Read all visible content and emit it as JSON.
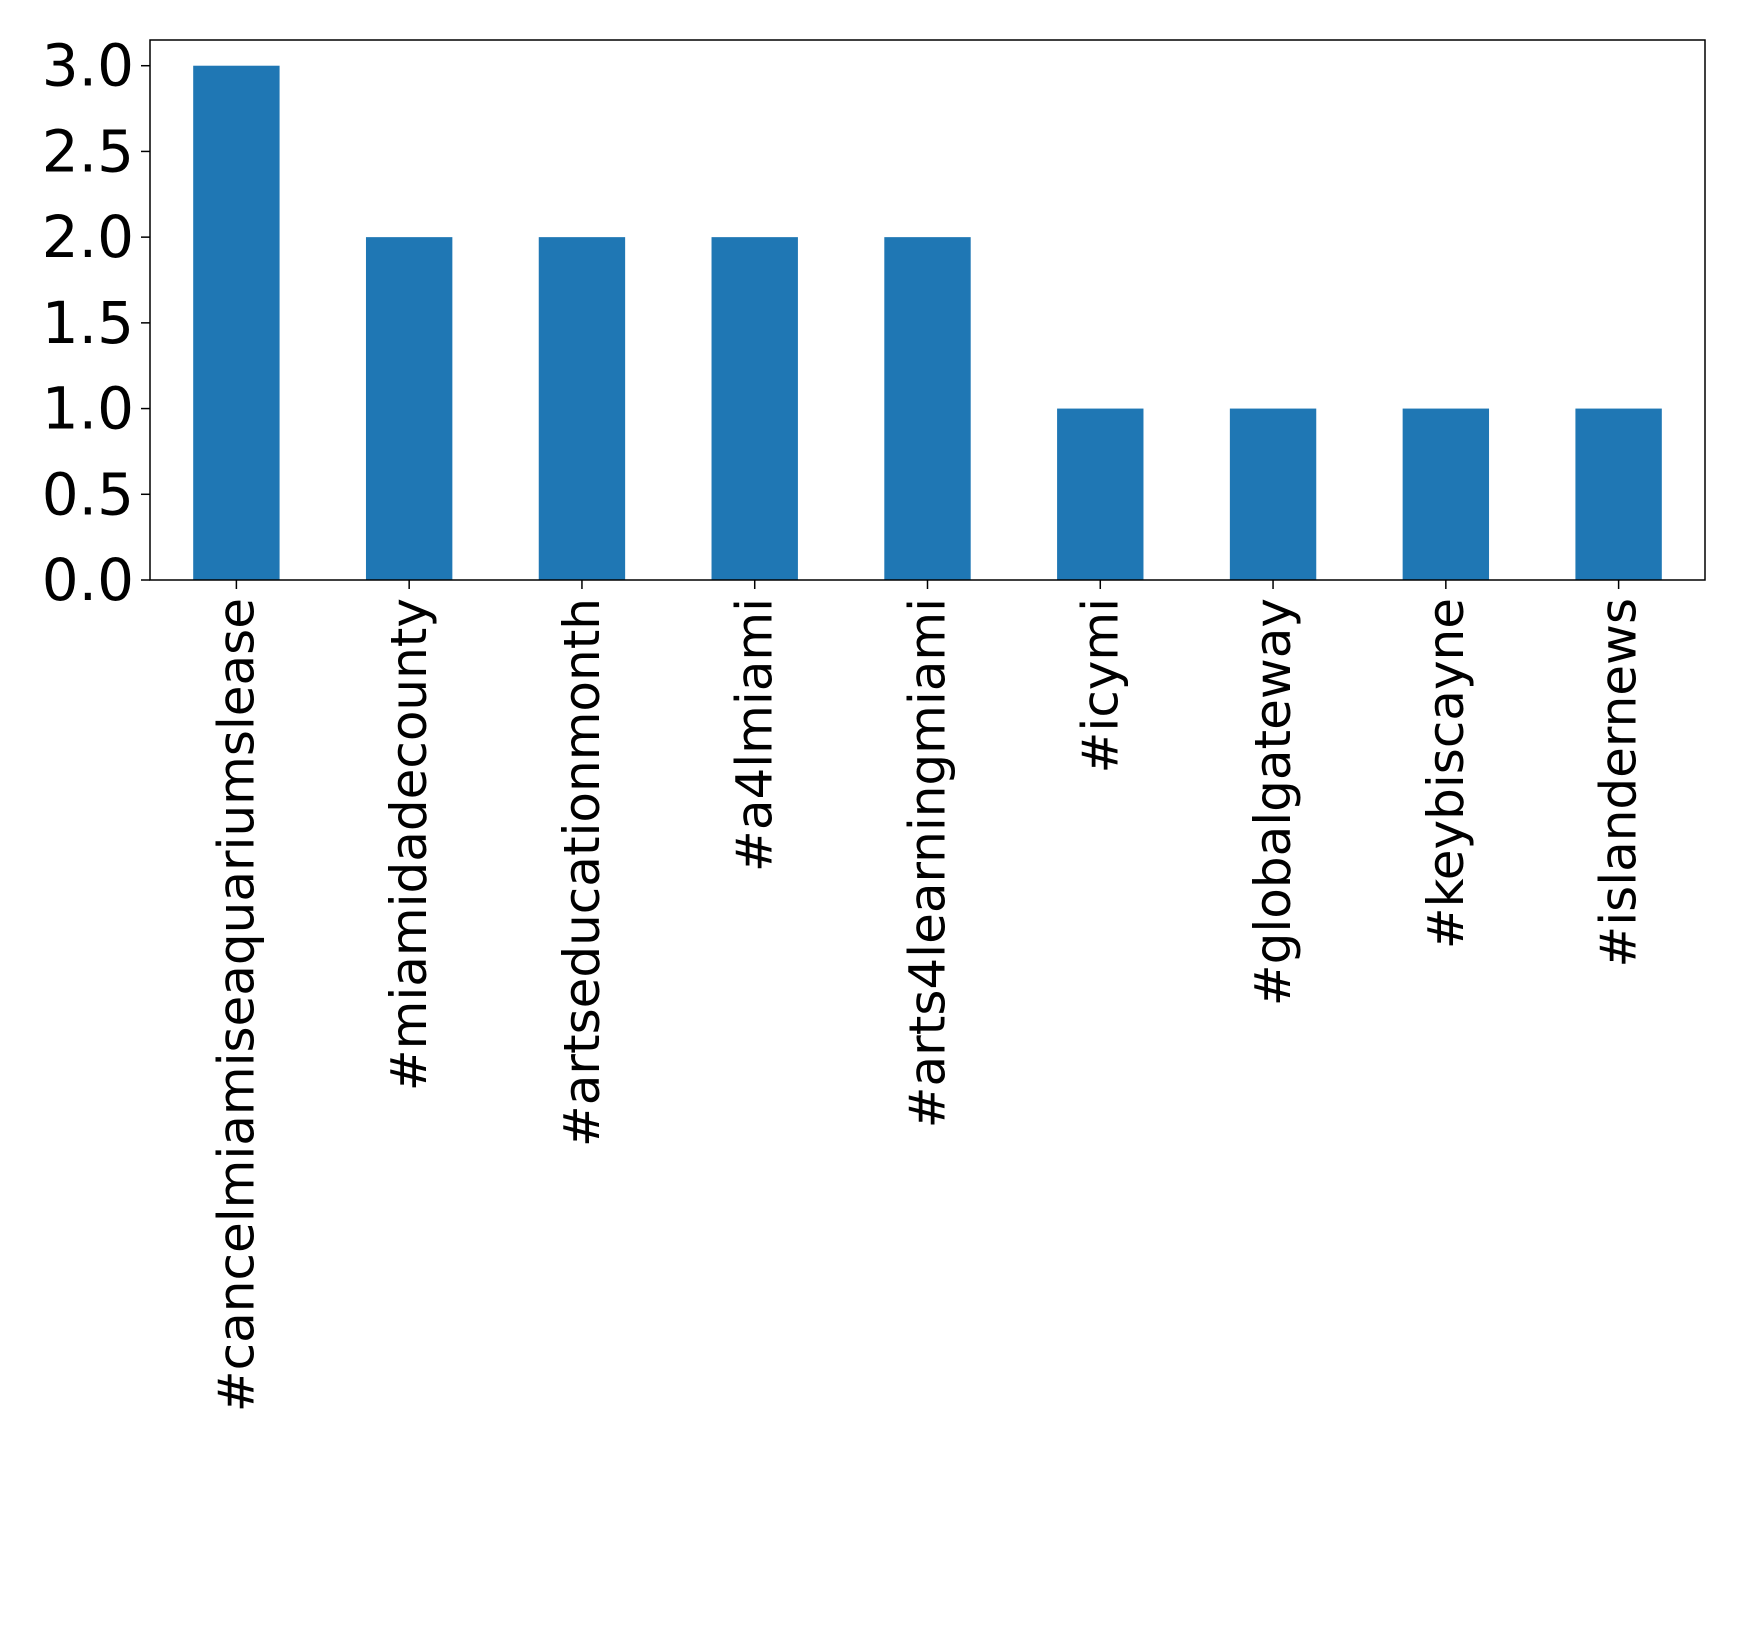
{
  "chart_data": {
    "type": "bar",
    "title": "",
    "xlabel": "",
    "ylabel": "",
    "categories": [
      "#cancelmiamiseaquariumslease",
      "#miamidadecounty",
      "#artseducationmonth",
      "#a4lmiami",
      "#arts4learningmiami",
      "#icymi",
      "#globalgateway",
      "#keybiscayne",
      "#islandernews"
    ],
    "values": [
      3,
      2,
      2,
      2,
      2,
      1,
      1,
      1,
      1
    ],
    "ylim": [
      0,
      3.15
    ],
    "yticks": [
      0.0,
      0.5,
      1.0,
      1.5,
      2.0,
      2.5,
      3.0
    ],
    "ytick_labels": [
      "0.0",
      "0.5",
      "1.0",
      "1.5",
      "2.0",
      "2.5",
      "3.0"
    ],
    "bar_color": "#1f77b4",
    "grid": false,
    "legend": "none"
  }
}
